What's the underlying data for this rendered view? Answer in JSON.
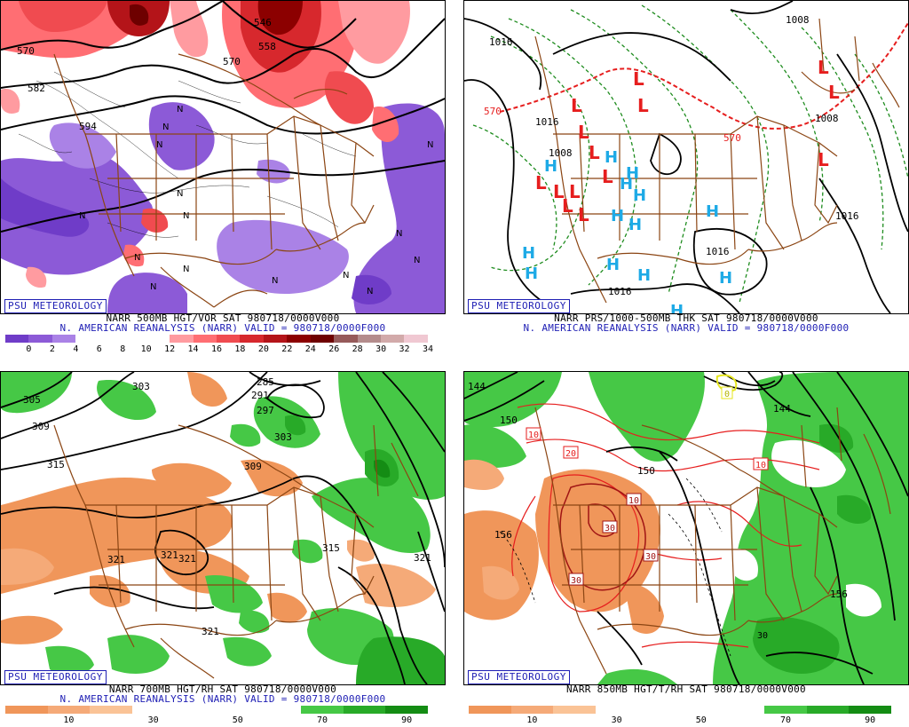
{
  "panels": [
    {
      "id": "vort500",
      "logo": "PSU METEOROLOGY",
      "caption_line1": "NARR 500MB HGT/VOR SAT 980718/0000V000",
      "caption_line2": "N. AMERICAN REANALYSIS (NARR) VALID = 980718/0000F000",
      "colorbar": {
        "colors": [
          "#6f3cc8",
          "#8c5ad7",
          "#aa82e6",
          "#ffffff",
          "#ffffff",
          "#ffffff",
          "#ffffff",
          "#ff9ba0",
          "#ff6e73",
          "#f04b50",
          "#d7282d",
          "#b41419",
          "#8c0000",
          "#6e0000",
          "#965a5a",
          "#b48c8c",
          "#d2aaaa",
          "#f0c8d2"
        ],
        "labels": [
          "0",
          "2",
          "4",
          "6",
          "8",
          "10",
          "12",
          "14",
          "16",
          "18",
          "20",
          "22",
          "24",
          "26",
          "28",
          "30",
          "32",
          "34"
        ]
      },
      "contour_labels": [
        "570",
        "582",
        "594",
        "546",
        "558",
        "570"
      ],
      "symbols": [
        "N",
        "N",
        "N",
        "N",
        "N",
        "N",
        "N",
        "N",
        "N",
        "N",
        "N",
        "N",
        "N",
        "N",
        "N"
      ]
    },
    {
      "id": "thk",
      "logo": "PSU METEOROLOGY",
      "caption_line1": "NARR PRS/1000-500MB THK SAT 980718/0000V000",
      "caption_line2": "N. AMERICAN REANALYSIS (NARR) VALID = 980718/0000F000",
      "contour_labels": [
        "1016",
        "1008",
        "1016",
        "1008",
        "1016",
        "1008",
        "1016",
        "1016",
        "570",
        "570"
      ],
      "low_symbol": "L",
      "high_symbol": "H"
    },
    {
      "id": "rh700",
      "logo": "PSU METEOROLOGY",
      "caption_line1": "NARR 700MB HGT/RH SAT 980718/0000V000",
      "caption_line2": "N. AMERICAN REANALYSIS (NARR) VALID = 980718/0000F000",
      "colorbar": {
        "colors": [
          "#f0965a",
          "#f5aa78",
          "#fac396",
          "#ffffff",
          "#ffffff",
          "#ffffff",
          "#ffffff",
          "#46c846",
          "#28aa28",
          "#148c14"
        ],
        "labels": [
          "10",
          "30",
          "50",
          "70",
          "90"
        ]
      },
      "contour_labels": [
        "303",
        "305",
        "309",
        "291",
        "297",
        "285",
        "303",
        "315",
        "309",
        "321",
        "321",
        "321",
        "321",
        "315",
        "321"
      ]
    },
    {
      "id": "rh850",
      "logo": "PSU METEOROLOGY",
      "caption_line1": "NARR 850MB HGT/T/RH SAT 980718/0000V000",
      "caption_line2": "",
      "colorbar": {
        "colors": [
          "#f0965a",
          "#f5aa78",
          "#fac396",
          "#ffffff",
          "#ffffff",
          "#ffffff",
          "#ffffff",
          "#46c846",
          "#28aa28",
          "#148c14"
        ],
        "labels": [
          "10",
          "30",
          "50",
          "70",
          "90"
        ]
      },
      "contour_labels": [
        "144",
        "150",
        "144",
        "150",
        "156",
        "156",
        "0",
        "10",
        "20",
        "10",
        "10",
        "30",
        "30",
        "30",
        "30"
      ]
    }
  ]
}
